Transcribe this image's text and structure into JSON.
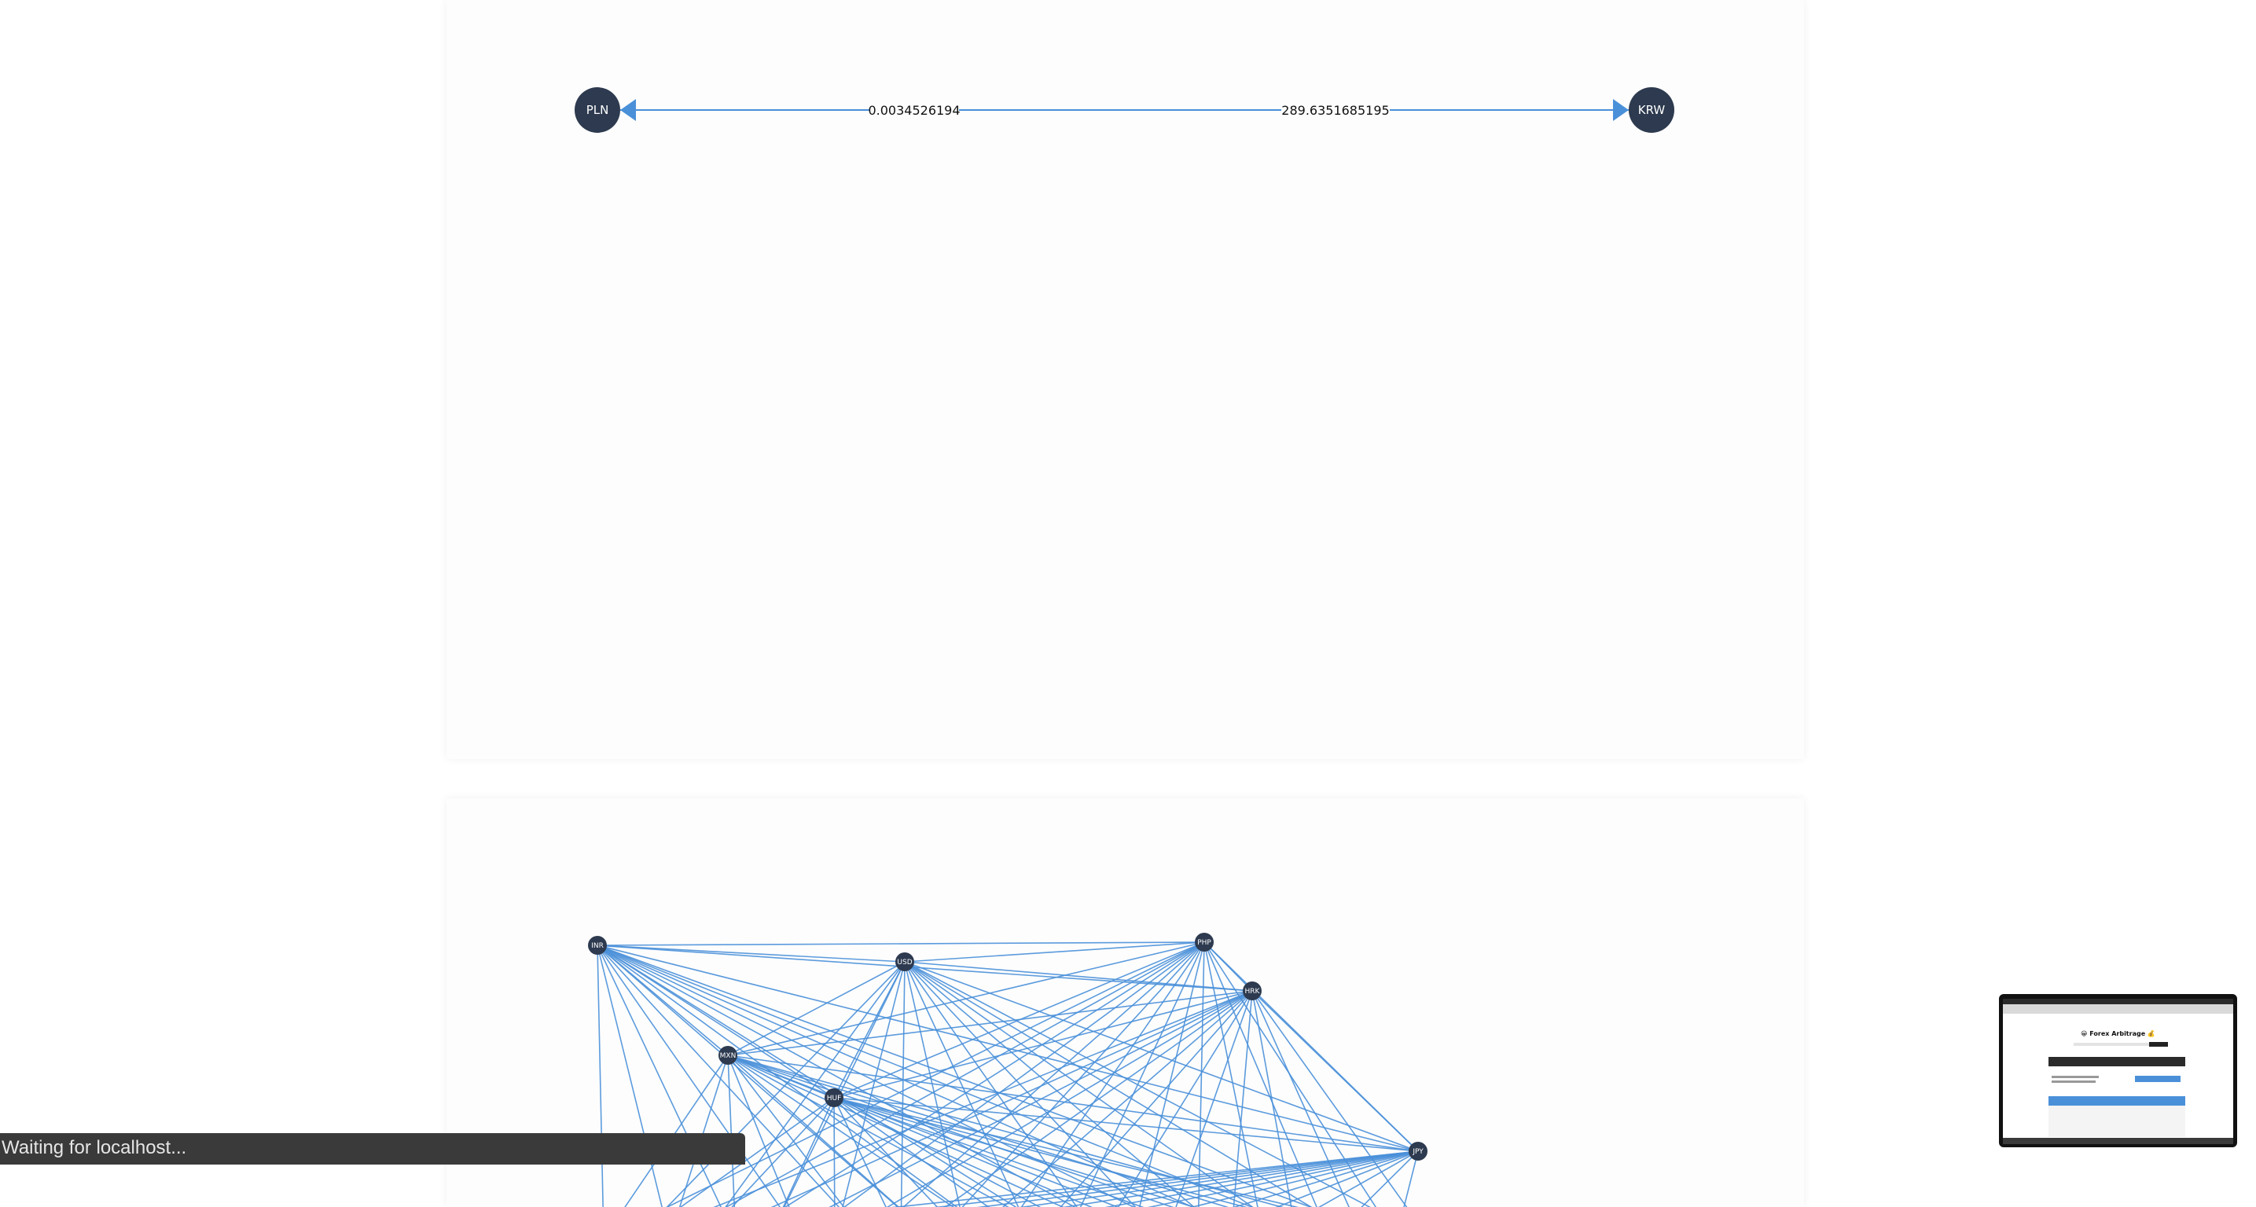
{
  "graph1": {
    "nodes": [
      {
        "id": "PLN",
        "label": "PLN"
      },
      {
        "id": "KRW",
        "label": "KRW"
      }
    ],
    "edges": [
      {
        "from": "KRW",
        "to": "PLN",
        "label": "0.0034526194"
      },
      {
        "from": "PLN",
        "to": "KRW",
        "label": "289.6351685195"
      }
    ]
  },
  "graph2": {
    "nodes": [
      {
        "id": "INR",
        "label": "INR"
      },
      {
        "id": "USD",
        "label": "USD"
      },
      {
        "id": "PHP",
        "label": "PHP"
      },
      {
        "id": "HRK",
        "label": "HRK"
      },
      {
        "id": "MXN",
        "label": "MXN"
      },
      {
        "id": "HUF",
        "label": "HUF"
      },
      {
        "id": "JPY",
        "label": "JPY"
      }
    ]
  },
  "status_bar": {
    "text": "Waiting for localhost..."
  },
  "thumbnail": {
    "title": "😀 Forex Arbitrage 💰"
  },
  "colors": {
    "edge": "#4a90d9",
    "node": "#2d3a4f"
  }
}
